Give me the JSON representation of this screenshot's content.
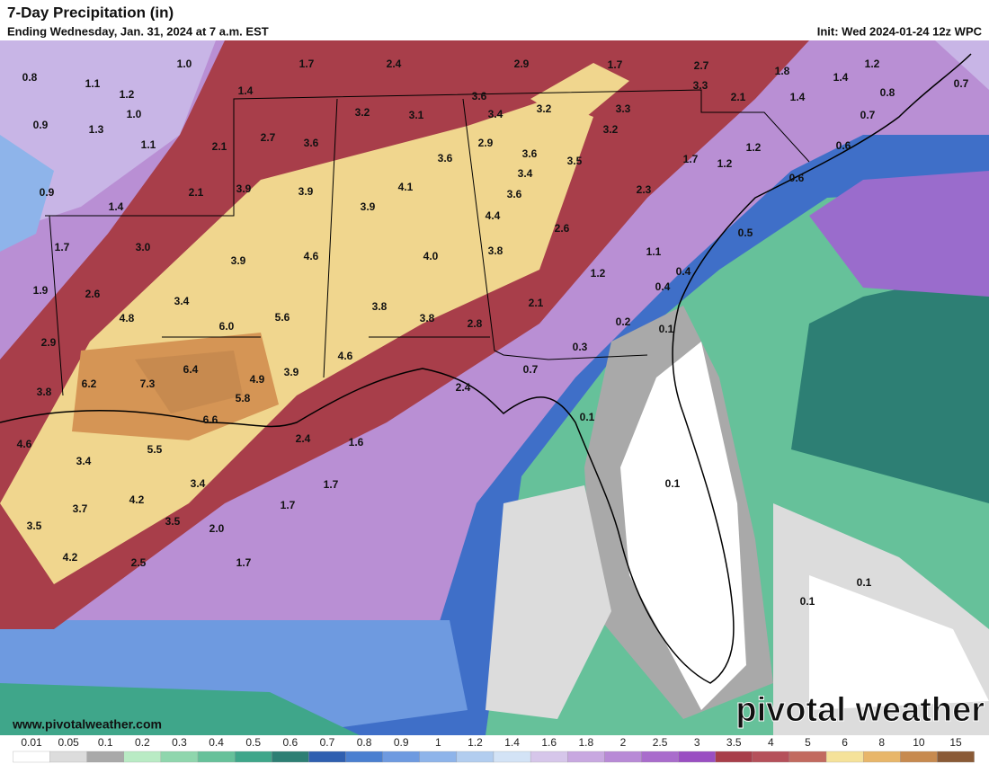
{
  "header": {
    "title": "7-Day Precipitation (in)",
    "subtitle": "Ending Wednesday, Jan. 31, 2024 at 7 a.m. EST",
    "init": "Init: Wed 2024-01-24 12z WPC"
  },
  "map": {
    "labels": [
      "0.8",
      "1.0",
      "1.7",
      "2.4",
      "2.9",
      "1.7",
      "2.7",
      "1.8",
      "1.2",
      "1.4",
      "0.7",
      "0.8",
      "3.3",
      "2.1",
      "1.4",
      "1.1",
      "1.2",
      "1.4",
      "3.6",
      "3.2",
      "3.1",
      "3.4",
      "3.2",
      "3.3",
      "0.7",
      "1.0",
      "0.9",
      "1.3",
      "3.2",
      "1.1",
      "2.1",
      "2.7",
      "3.6",
      "2.9",
      "3.6",
      "1.2",
      "0.6",
      "1.7",
      "1.2",
      "3.5",
      "3.6",
      "3.4",
      "0.6",
      "0.9",
      "2.1",
      "3.9",
      "3.9",
      "4.1",
      "3.6",
      "2.3",
      "1.4",
      "3.9",
      "4.4",
      "2.6",
      "0.5",
      "1.7",
      "3.0",
      "4.6",
      "4.0",
      "3.8",
      "1.1",
      "3.9",
      "0.4",
      "1.2",
      "1.9",
      "2.6",
      "0.4",
      "2.1",
      "3.4",
      "4.8",
      "6.0",
      "5.6",
      "3.8",
      "3.8",
      "2.8",
      "0.2",
      "0.1",
      "2.9",
      "0.3",
      "4.6",
      "3.9",
      "0.7",
      "6.4",
      "3.8",
      "6.2",
      "7.3",
      "4.9",
      "5.8",
      "2.4",
      "6.6",
      "0.1",
      "2.4",
      "1.6",
      "4.6",
      "5.5",
      "3.4",
      "1.7",
      "3.4",
      "0.1",
      "4.2",
      "3.7",
      "1.7",
      "3.5",
      "3.5",
      "2.0",
      "4.2",
      "2.5",
      "1.7",
      "0.1",
      "0.1"
    ]
  },
  "footer": {
    "website": "www.pivotalweather.com",
    "logo": "pivotal weather"
  },
  "legend": {
    "labels": [
      "0.01",
      "0.05",
      "0.1",
      "0.2",
      "0.3",
      "0.4",
      "0.5",
      "0.6",
      "0.7",
      "0.8",
      "0.9",
      "1",
      "1.2",
      "1.4",
      "1.6",
      "1.8",
      "2",
      "2.5",
      "3",
      "3.5",
      "4",
      "5",
      "6",
      "8",
      "10",
      "15"
    ],
    "colors": [
      "#ffffff",
      "#dcdcdc",
      "#a9a9a9",
      "#b9ebc4",
      "#8fd6ad",
      "#66c19a",
      "#3fa68a",
      "#2d7f74",
      "#2f5fb0",
      "#4a7fd0",
      "#6e9ae0",
      "#8eb4ea",
      "#b2cdef",
      "#d3e3f6",
      "#d6c6ea",
      "#c8a8e0",
      "#b88ad6",
      "#a96ccc",
      "#9a4fc2",
      "#a83e4a",
      "#b5505a",
      "#c26a5f",
      "#f5e29a",
      "#e8b66a",
      "#c78a4f",
      "#8a5a36"
    ]
  }
}
